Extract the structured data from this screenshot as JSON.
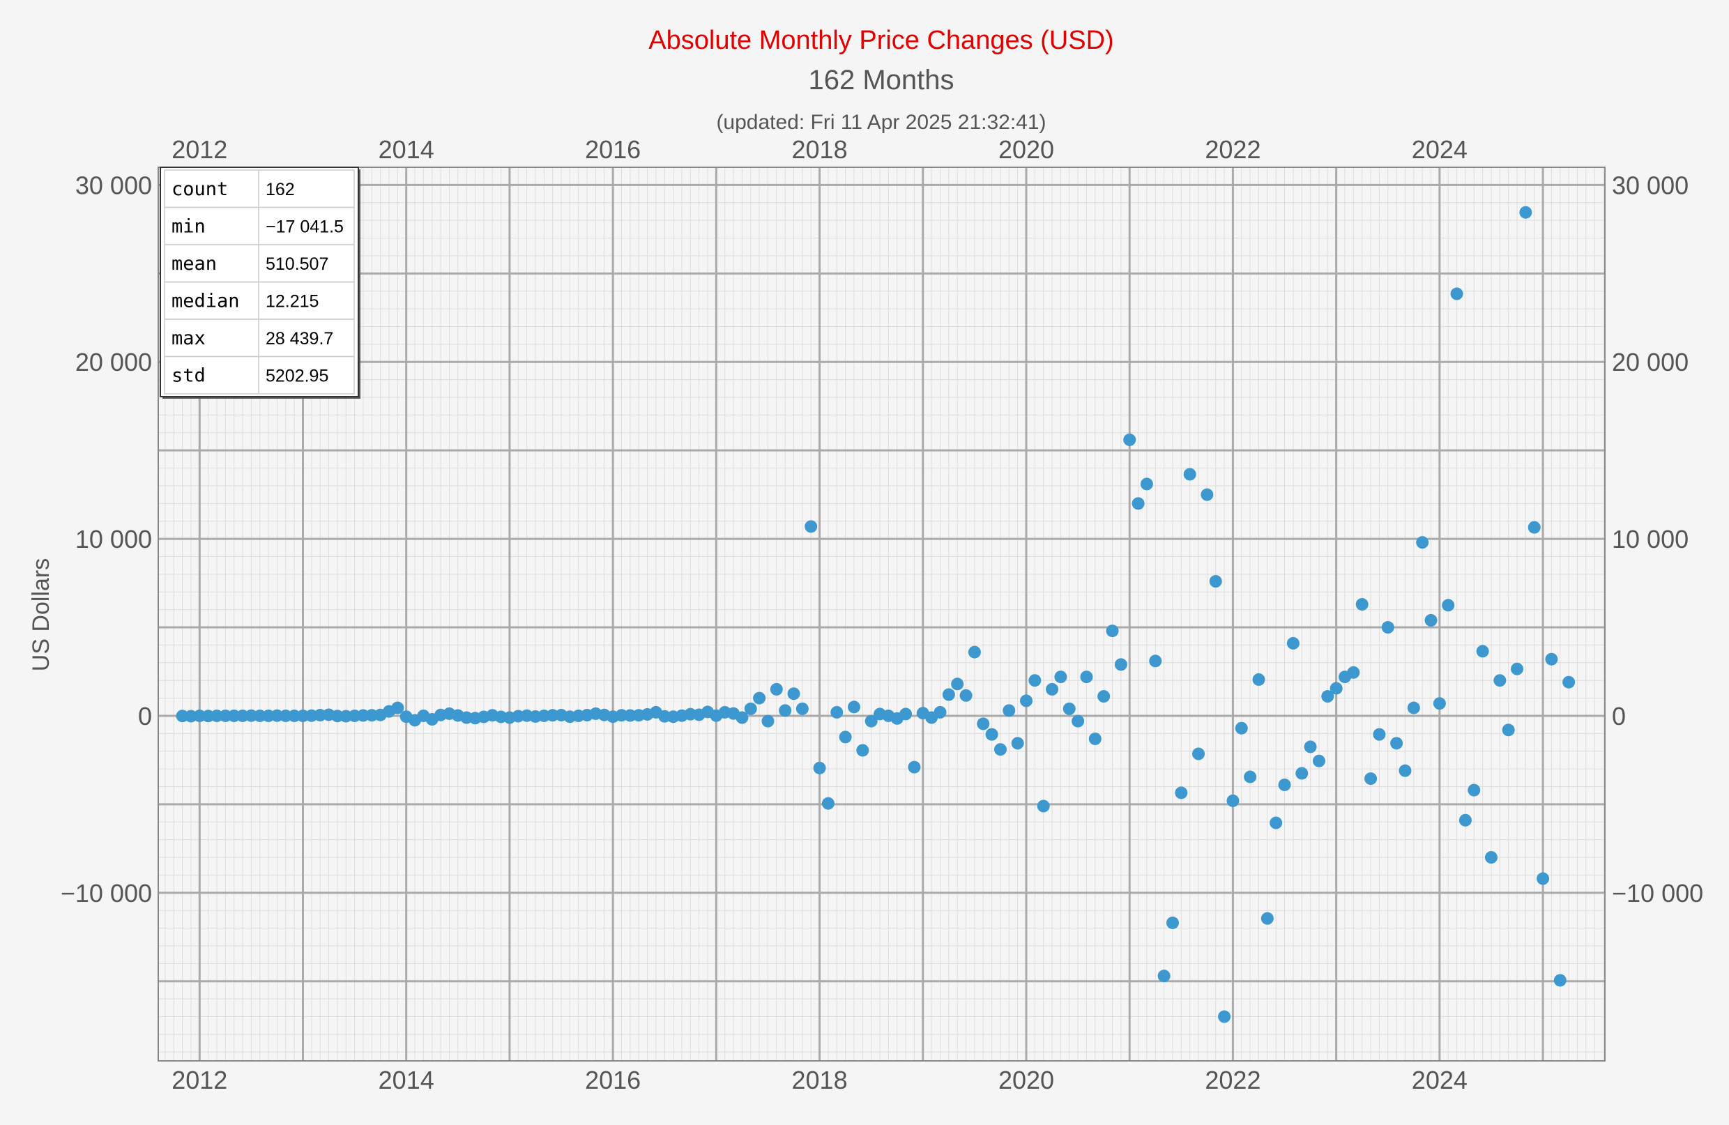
{
  "chart_data": {
    "type": "scatter",
    "title": "Absolute Monthly Price Changes (USD)",
    "subtitle": "162 Months",
    "updated": "(updated: Fri 11 Apr 2025 21:32:41)",
    "ylabel": "US Dollars",
    "xlim": [
      2011.6,
      2025.6
    ],
    "ylim": [
      -19500,
      31000
    ],
    "x_ticks": [
      "2012",
      "2014",
      "2016",
      "2018",
      "2020",
      "2022",
      "2024"
    ],
    "y_ticks": [
      {
        "value": 30000,
        "label": "30 000"
      },
      {
        "value": 20000,
        "label": "20 000"
      },
      {
        "value": 10000,
        "label": "10 000"
      },
      {
        "value": 0,
        "label": "0"
      },
      {
        "value": -10000,
        "label": "−10 000"
      }
    ],
    "grid": true,
    "color": "#3d98cf",
    "stats": [
      {
        "label": "count",
        "value": "162"
      },
      {
        "label": "min",
        "value": "−17 041.5"
      },
      {
        "label": "mean",
        "value": "510.507"
      },
      {
        "label": "median",
        "value": "12.215"
      },
      {
        "label": "max",
        "value": "28 439.7"
      },
      {
        "label": "std",
        "value": "5202.95"
      }
    ],
    "points": [
      [
        "2011-11",
        -10
      ],
      [
        "2011-12",
        -20
      ],
      [
        "2012-01",
        0
      ],
      [
        "2012-02",
        -10
      ],
      [
        "2012-03",
        0
      ],
      [
        "2012-04",
        0
      ],
      [
        "2012-05",
        0
      ],
      [
        "2012-06",
        0
      ],
      [
        "2012-07",
        10
      ],
      [
        "2012-08",
        0
      ],
      [
        "2012-09",
        0
      ],
      [
        "2012-10",
        10
      ],
      [
        "2012-11",
        0
      ],
      [
        "2012-12",
        0
      ],
      [
        "2013-01",
        0
      ],
      [
        "2013-02",
        10
      ],
      [
        "2013-03",
        40
      ],
      [
        "2013-04",
        60
      ],
      [
        "2013-05",
        -10
      ],
      [
        "2013-06",
        -20
      ],
      [
        "2013-07",
        0
      ],
      [
        "2013-08",
        20
      ],
      [
        "2013-09",
        30
      ],
      [
        "2013-10",
        50
      ],
      [
        "2013-11",
        250
      ],
      [
        "2013-12",
        450
      ],
      [
        "2014-01",
        -50
      ],
      [
        "2014-02",
        -250
      ],
      [
        "2014-03",
        0
      ],
      [
        "2014-04",
        -200
      ],
      [
        "2014-05",
        50
      ],
      [
        "2014-06",
        120
      ],
      [
        "2014-07",
        20
      ],
      [
        "2014-08",
        -100
      ],
      [
        "2014-09",
        -130
      ],
      [
        "2014-10",
        -60
      ],
      [
        "2014-11",
        30
      ],
      [
        "2014-12",
        -60
      ],
      [
        "2015-01",
        -100
      ],
      [
        "2015-02",
        -20
      ],
      [
        "2015-03",
        10
      ],
      [
        "2015-04",
        -40
      ],
      [
        "2015-05",
        0
      ],
      [
        "2015-06",
        30
      ],
      [
        "2015-07",
        40
      ],
      [
        "2015-08",
        -50
      ],
      [
        "2015-09",
        0
      ],
      [
        "2015-10",
        40
      ],
      [
        "2015-11",
        120
      ],
      [
        "2015-12",
        50
      ],
      [
        "2016-01",
        -50
      ],
      [
        "2016-02",
        30
      ],
      [
        "2016-03",
        20
      ],
      [
        "2016-04",
        30
      ],
      [
        "2016-05",
        80
      ],
      [
        "2016-06",
        200
      ],
      [
        "2016-07",
        -30
      ],
      [
        "2016-08",
        -50
      ],
      [
        "2016-09",
        10
      ],
      [
        "2016-10",
        90
      ],
      [
        "2016-11",
        60
      ],
      [
        "2016-12",
        220
      ],
      [
        "2017-01",
        10
      ],
      [
        "2017-02",
        200
      ],
      [
        "2017-03",
        130
      ],
      [
        "2017-04",
        -100
      ],
      [
        "2017-05",
        400
      ],
      [
        "2017-06",
        1000
      ],
      [
        "2017-07",
        -300
      ],
      [
        "2017-08",
        1500
      ],
      [
        "2017-09",
        300
      ],
      [
        "2017-10",
        1250
      ],
      [
        "2017-11",
        400
      ],
      [
        "2017-12",
        10700
      ],
      [
        "2018-01",
        -2950
      ],
      [
        "2018-02",
        -4950
      ],
      [
        "2018-03",
        200
      ],
      [
        "2018-04",
        -1200
      ],
      [
        "2018-05",
        500
      ],
      [
        "2018-06",
        -1950
      ],
      [
        "2018-07",
        -300
      ],
      [
        "2018-08",
        100
      ],
      [
        "2018-09",
        0
      ],
      [
        "2018-10",
        -150
      ],
      [
        "2018-11",
        100
      ],
      [
        "2018-12",
        -2900
      ],
      [
        "2019-01",
        150
      ],
      [
        "2019-02",
        -100
      ],
      [
        "2019-03",
        200
      ],
      [
        "2019-04",
        1200
      ],
      [
        "2019-05",
        1800
      ],
      [
        "2019-06",
        1150
      ],
      [
        "2019-07",
        3600
      ],
      [
        "2019-08",
        -450
      ],
      [
        "2019-09",
        -1050
      ],
      [
        "2019-10",
        -1900
      ],
      [
        "2019-11",
        300
      ],
      [
        "2019-12",
        -1550
      ],
      [
        "2020-01",
        850
      ],
      [
        "2020-02",
        2000
      ],
      [
        "2020-03",
        -5100
      ],
      [
        "2020-04",
        1500
      ],
      [
        "2020-05",
        2200
      ],
      [
        "2020-06",
        400
      ],
      [
        "2020-07",
        -300
      ],
      [
        "2020-08",
        2200
      ],
      [
        "2020-09",
        -1300
      ],
      [
        "2020-10",
        1100
      ],
      [
        "2020-11",
        4800
      ],
      [
        "2020-12",
        2900
      ],
      [
        "2021-01",
        15600
      ],
      [
        "2021-02",
        12000
      ],
      [
        "2021-03",
        13100
      ],
      [
        "2021-04",
        3100
      ],
      [
        "2021-05",
        -14700
      ],
      [
        "2021-06",
        -11700
      ],
      [
        "2021-07",
        -4350
      ],
      [
        "2021-08",
        13650
      ],
      [
        "2021-09",
        -2150
      ],
      [
        "2021-10",
        12500
      ],
      [
        "2021-11",
        7600
      ],
      [
        "2021-12",
        -17000
      ],
      [
        "2022-01",
        -4800
      ],
      [
        "2022-02",
        -700
      ],
      [
        "2022-03",
        -3450
      ],
      [
        "2022-04",
        2050
      ],
      [
        "2022-05",
        -11450
      ],
      [
        "2022-06",
        -6050
      ],
      [
        "2022-07",
        -3900
      ],
      [
        "2022-08",
        4100
      ],
      [
        "2022-09",
        -3250
      ],
      [
        "2022-10",
        -1750
      ],
      [
        "2022-11",
        -2550
      ],
      [
        "2022-12",
        1100
      ],
      [
        "2023-01",
        1550
      ],
      [
        "2023-02",
        2200
      ],
      [
        "2023-03",
        2450
      ],
      [
        "2023-04",
        6300
      ],
      [
        "2023-05",
        -3550
      ],
      [
        "2023-06",
        -1050
      ],
      [
        "2023-07",
        5000
      ],
      [
        "2023-08",
        -1550
      ],
      [
        "2023-09",
        -3100
      ],
      [
        "2023-10",
        450
      ],
      [
        "2023-11",
        9800
      ],
      [
        "2023-12",
        5400
      ],
      [
        "2024-01",
        700
      ],
      [
        "2024-02",
        6250
      ],
      [
        "2024-03",
        23850
      ],
      [
        "2024-04",
        -5900
      ],
      [
        "2024-05",
        -4200
      ],
      [
        "2024-06",
        3650
      ],
      [
        "2024-07",
        -8000
      ],
      [
        "2024-08",
        2000
      ],
      [
        "2024-09",
        -800
      ],
      [
        "2024-10",
        2650
      ],
      [
        "2024-11",
        28450
      ],
      [
        "2024-12",
        10650
      ],
      [
        "2025-01",
        -9200
      ],
      [
        "2025-02",
        3200
      ],
      [
        "2025-03",
        -14950
      ],
      [
        "2025-04",
        1900
      ]
    ]
  }
}
